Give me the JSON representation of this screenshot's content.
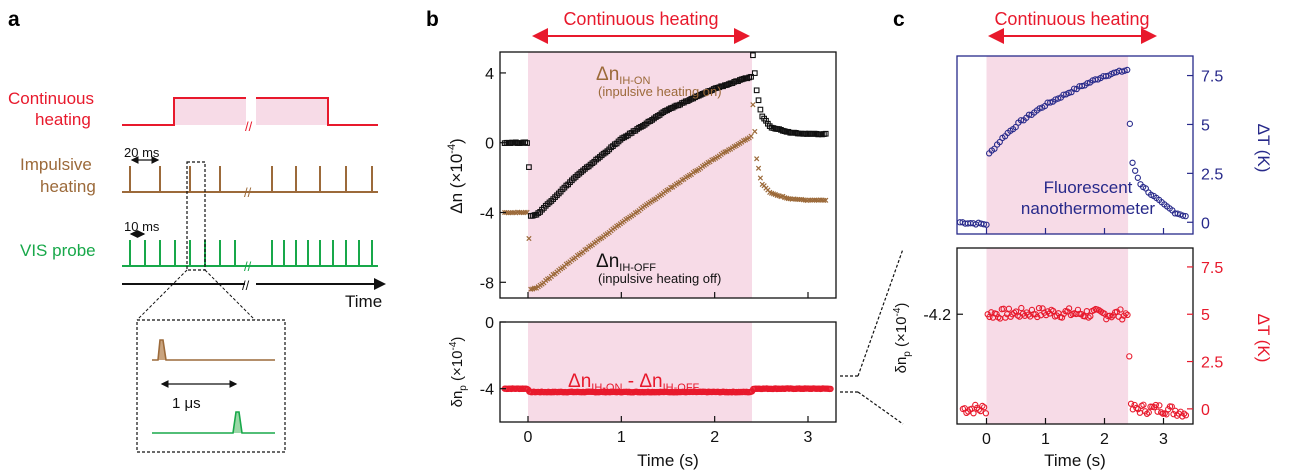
{
  "panel_labels": {
    "a": "a",
    "b": "b",
    "c": "c"
  },
  "colors": {
    "red": "#e8192c",
    "brown": "#9c6a3a",
    "green": "#18a84a",
    "navy": "#27298a",
    "pink": "#f7dbe7",
    "black": "#111111"
  },
  "panel_a": {
    "rows": [
      {
        "label_lines": [
          "Continuous",
          "heating"
        ],
        "color": "#e8192c"
      },
      {
        "label_lines": [
          "Impulsive",
          "heating"
        ],
        "color": "#9c6a3a"
      },
      {
        "label_lines": [
          "VIS probe"
        ],
        "color": "#18a84a"
      }
    ],
    "period_impulsive": "20 ms",
    "period_probe": "10 ms",
    "time_label": "Time",
    "inset_delay": "1 μs"
  },
  "panel_b": {
    "annotation": "Continuous heating",
    "top_ylabel_main": "Δn (×10",
    "top_ylabel_exp": "-4",
    "top_ylabel_tail": ")",
    "label_on_main": "Δn",
    "label_on_sub": "IH-ON",
    "label_on_desc": "(inpulsive heating on)",
    "label_off_main": "Δn",
    "label_off_sub": "IH-OFF",
    "label_off_desc": "(inpulsive heating off)",
    "diff_label_a": "Δn",
    "diff_label_a_sub": "IH-ON",
    "diff_label_mid": " - Δn",
    "diff_label_b_sub": "IH-OFF",
    "bottom_ylabel_main": "δn",
    "bottom_ylabel_sub": "p",
    "bottom_ylabel_rest": " (×10",
    "bottom_ylabel_exp": "-4",
    "bottom_ylabel_tail": ")",
    "xlabel": "Time (s)"
  },
  "panel_c": {
    "annotation": "Continuous heating",
    "top_right_label": "ΔT (K)",
    "top_text_lines": [
      "Fluorescent",
      "nanothermometer"
    ],
    "bottom_left_label_main": "δn",
    "bottom_left_label_sub": "p",
    "bottom_left_label_rest": " (×10",
    "bottom_left_label_exp": "-4",
    "bottom_left_label_tail": ")",
    "bottom_right_label": "ΔT (K)",
    "xlabel": "Time (s)"
  },
  "chart_data": [
    {
      "id": "b-top",
      "type": "scatter",
      "heating_interval": [
        0,
        2.4
      ],
      "xlim": [
        -0.3,
        3.3
      ],
      "ylim": [
        5.2,
        -8.9
      ],
      "xticks": [
        0,
        1,
        2,
        3
      ],
      "yticks": [
        -8,
        -4,
        0,
        4
      ],
      "ytick_labels": [
        "-8",
        "-4",
        "0",
        "4"
      ],
      "series": [
        {
          "name": "Δn IH-ON",
          "marker": "x",
          "color": "#9c6a3a",
          "x": [
            -0.25,
            -0.1,
            0.0,
            0.03,
            0.1,
            0.5,
            1.0,
            1.5,
            2.0,
            2.4,
            2.41,
            2.45,
            2.5,
            2.6,
            2.8,
            3.0,
            3.2
          ],
          "y": [
            -4.0,
            -4.0,
            -4.0,
            -8.4,
            -8.3,
            -6.6,
            -4.6,
            -2.7,
            -0.9,
            0.4,
            2.2,
            -0.9,
            -2.3,
            -2.9,
            -3.2,
            -3.3,
            -3.3
          ]
        },
        {
          "name": "Δn IH-OFF",
          "marker": "square",
          "color": "#111111",
          "x": [
            -0.25,
            -0.1,
            0.0,
            0.03,
            0.1,
            0.5,
            1.0,
            1.5,
            2.0,
            2.4,
            2.41,
            2.45,
            2.5,
            2.6,
            2.8,
            3.0,
            3.2
          ],
          "y": [
            0.0,
            0.0,
            0.0,
            -4.2,
            -4.1,
            -2.0,
            0.2,
            1.9,
            3.1,
            3.8,
            5.0,
            3.0,
            1.6,
            0.9,
            0.6,
            0.5,
            0.5
          ]
        }
      ]
    },
    {
      "id": "b-bottom",
      "type": "scatter",
      "heating_interval": [
        0,
        2.4
      ],
      "xlim": [
        -0.3,
        3.3
      ],
      "ylim": [
        0,
        -6
      ],
      "xticks": [
        0,
        1,
        2,
        3
      ],
      "xtick_labels": [
        "0",
        "1",
        "2",
        "3"
      ],
      "yticks": [
        -4,
        0
      ],
      "ytick_labels": [
        "-4",
        "0"
      ],
      "series": [
        {
          "name": "Δn IH-ON - Δn IH-OFF",
          "marker": "circle",
          "color": "#e8192c",
          "x": [
            -0.25,
            0.0,
            0.01,
            2.4,
            2.41,
            3.25
          ],
          "y": [
            -4.0,
            -4.0,
            -4.2,
            -4.2,
            -4.0,
            -4.0
          ]
        }
      ]
    },
    {
      "id": "c-top",
      "type": "scatter",
      "heating_interval": [
        0,
        2.4
      ],
      "xlim": [
        -0.5,
        3.5
      ],
      "ylim": [
        -0.6,
        8.5
      ],
      "yticks_right": [
        0,
        2.5,
        5,
        7.5
      ],
      "ytick_labels_right": [
        "0",
        "2.5",
        "5",
        "7.5"
      ],
      "series": [
        {
          "name": "Fluorescent nanothermometer",
          "marker": "circle",
          "color": "#27298a",
          "x": [
            -0.45,
            0.0,
            0.02,
            0.3,
            0.6,
            1.0,
            1.5,
            2.0,
            2.4,
            2.45,
            2.6,
            2.8,
            3.0,
            3.2,
            3.4
          ],
          "y": [
            0.0,
            -0.1,
            3.4,
            4.4,
            5.2,
            6.0,
            6.8,
            7.5,
            7.8,
            3.2,
            2.0,
            1.4,
            0.9,
            0.5,
            0.3
          ]
        }
      ]
    },
    {
      "id": "c-bottom",
      "type": "scatter",
      "heating_interval": [
        0,
        2.4
      ],
      "xlim": [
        -0.5,
        3.5
      ],
      "xticks": [
        0,
        1,
        2,
        3
      ],
      "xtick_labels": [
        "0",
        "1",
        "2",
        "3"
      ],
      "ylim_right": [
        -0.8,
        8.5
      ],
      "yticks_right": [
        0,
        2.5,
        5,
        7.5
      ],
      "ytick_labels_right": [
        "0",
        "2.5",
        "5",
        "7.5"
      ],
      "yticks_left": [
        -4.2
      ],
      "ytick_labels_left": [
        "-4.2"
      ],
      "series": [
        {
          "name": "δn p",
          "marker": "circle",
          "color": "#e8192c",
          "x": [
            -0.4,
            0.0,
            0.02,
            1.0,
            2.0,
            2.4,
            2.45,
            3.0,
            3.4
          ],
          "y": [
            0.0,
            0.0,
            5.0,
            5.1,
            5.0,
            5.0,
            0.0,
            0.0,
            -0.2
          ]
        }
      ]
    }
  ]
}
